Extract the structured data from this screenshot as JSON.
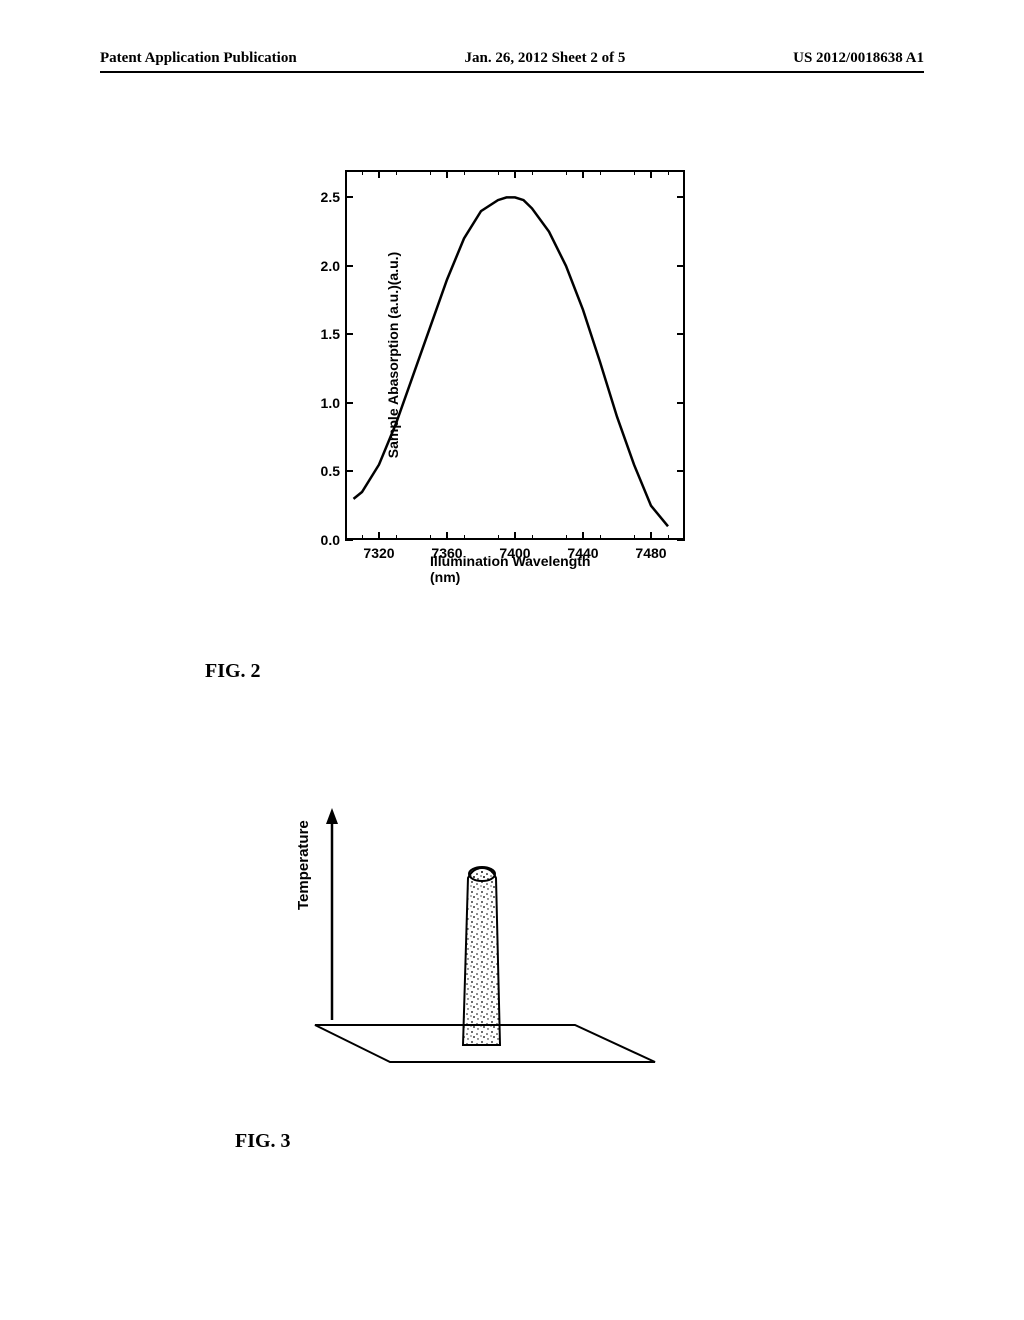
{
  "header": {
    "left": "Patent Application Publication",
    "center": "Jan. 26, 2012  Sheet 2 of 5",
    "right": "US 2012/0018638 A1"
  },
  "fig2": {
    "type": "line",
    "label": "FIG. 2",
    "ylabel": "Sample Abasorption (a.u.)(a.u.)",
    "xlabel": "Illumination Wavelength (nm)",
    "ylim": [
      0.0,
      2.7
    ],
    "xlim": [
      7300,
      7500
    ],
    "yticks": [
      0.0,
      0.5,
      1.0,
      1.5,
      2.0,
      2.5
    ],
    "xticks": [
      7320,
      7360,
      7400,
      7440,
      7480
    ],
    "ytick_labels": [
      "0.0",
      "0.5",
      "1.0",
      "1.5",
      "2.0",
      "2.5"
    ],
    "xtick_labels": [
      "7320",
      "7360",
      "7400",
      "7440",
      "7480"
    ],
    "line_color": "#000000",
    "line_width": 2.5,
    "background_color": "#ffffff",
    "border_color": "#000000",
    "label_fontsize": 14,
    "data_points": [
      [
        7305,
        0.3
      ],
      [
        7310,
        0.35
      ],
      [
        7320,
        0.55
      ],
      [
        7330,
        0.85
      ],
      [
        7340,
        1.2
      ],
      [
        7350,
        1.55
      ],
      [
        7360,
        1.9
      ],
      [
        7370,
        2.2
      ],
      [
        7380,
        2.4
      ],
      [
        7390,
        2.48
      ],
      [
        7395,
        2.5
      ],
      [
        7400,
        2.5
      ],
      [
        7405,
        2.48
      ],
      [
        7410,
        2.42
      ],
      [
        7420,
        2.25
      ],
      [
        7430,
        2.0
      ],
      [
        7440,
        1.68
      ],
      [
        7450,
        1.3
      ],
      [
        7460,
        0.9
      ],
      [
        7470,
        0.55
      ],
      [
        7480,
        0.25
      ],
      [
        7490,
        0.1
      ]
    ]
  },
  "fig3": {
    "type": "diagram",
    "label": "FIG. 3",
    "axis_label": "Temperature",
    "line_color": "#000000",
    "fill_pattern": "stipple",
    "label_fontsize": 15
  }
}
